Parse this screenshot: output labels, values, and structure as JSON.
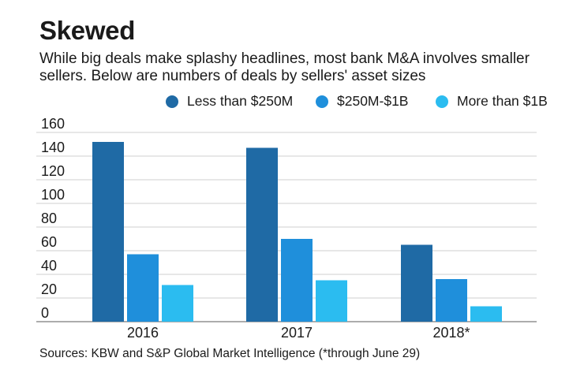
{
  "title": "Skewed",
  "subtitle": "While big deals make splashy headlines, most bank M&A involves smaller sellers. Below are numbers of deals by sellers' asset sizes",
  "source": "Sources: KBW and S&P Global Market Intelligence (*through June 29)",
  "chart_data": {
    "type": "bar",
    "title": "Skewed",
    "subtitle": "While big deals make splashy headlines, most bank M&A involves smaller sellers. Below are numbers of deals by sellers' asset sizes",
    "categories": [
      "2016",
      "2017",
      "2018*"
    ],
    "series": [
      {
        "name": "Less than $250M",
        "values": [
          152,
          147,
          65
        ],
        "color": "#1f6aa5"
      },
      {
        "name": "$250M-$1B",
        "values": [
          57,
          70,
          36
        ],
        "color": "#1f8fdb"
      },
      {
        "name": "More than $1B",
        "values": [
          31,
          35,
          13
        ],
        "color": "#2bbcf0"
      }
    ],
    "ylim": [
      0,
      160
    ],
    "yticks": [
      0,
      20,
      40,
      60,
      80,
      100,
      120,
      140,
      160
    ],
    "xlabel": "",
    "ylabel": "",
    "grid": true,
    "legend_position": "top-right"
  }
}
